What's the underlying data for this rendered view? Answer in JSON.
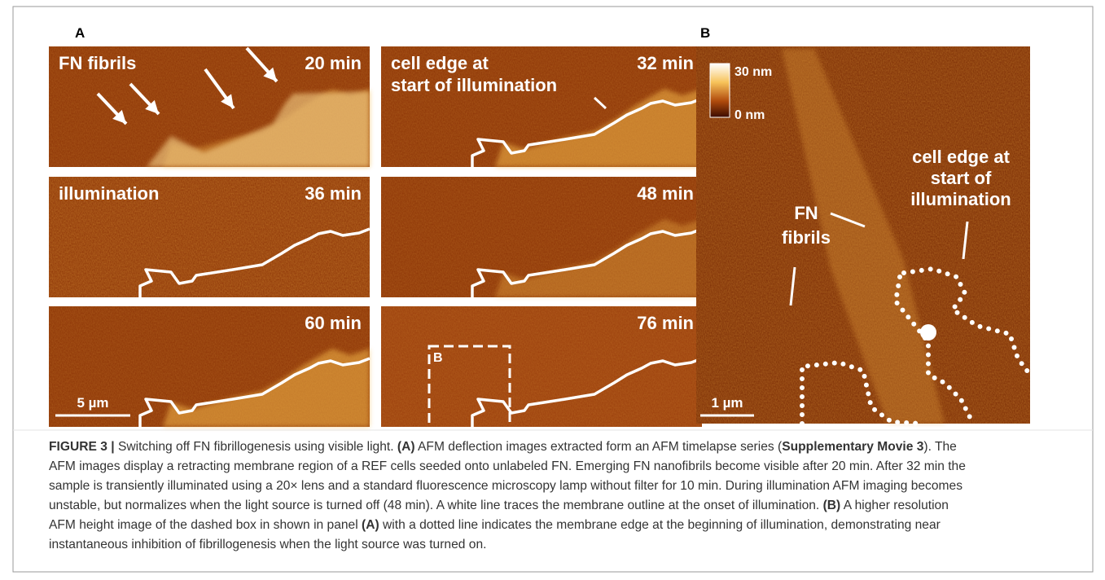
{
  "figure": {
    "panel_a": {
      "label": "A",
      "tiles": [
        {
          "label_lines": [
            "FN fibrils"
          ],
          "time": "20 min"
        },
        {
          "label_lines": [
            "cell edge at",
            "start of illumination"
          ],
          "time": "32 min"
        },
        {
          "label_lines": [
            "illumination"
          ],
          "time": "36 min"
        },
        {
          "label_lines": [],
          "time": "48 min"
        },
        {
          "label_lines": [],
          "time": "60 min",
          "scale_bar": "5 µm"
        },
        {
          "label_lines": [],
          "time": "76 min",
          "box_label": "B"
        }
      ]
    },
    "panel_b": {
      "label": "B",
      "colorbar_max": "30 nm",
      "colorbar_min": "0 nm",
      "scale_bar": "1 µm",
      "cell_edge_lines": [
        "cell edge at",
        "start of",
        "illumination"
      ],
      "fn_lines": [
        "FN",
        "fibrils"
      ]
    }
  },
  "caption": {
    "lines": [
      [
        {
          "text": "FIGURE 3 |",
          "bold": true
        },
        {
          "text": " Switching off FN fibrillogenesis using visible light. ",
          "bold": false
        },
        {
          "text": "(A)",
          "bold": true
        },
        {
          "text": " AFM deflection images extracted form an AFM timelapse series (",
          "bold": false
        },
        {
          "text": "Supplementary Movie 3",
          "bold": true
        },
        {
          "text": "). The",
          "bold": false
        }
      ],
      [
        {
          "text": "AFM images display a retracting membrane region of a REF cells seeded onto unlabeled FN. Emerging FN nanofibrils become visible after 20 min. After 32 min the",
          "bold": false
        }
      ],
      [
        {
          "text": "sample is transiently illuminated using a 20× lens and a standard fluorescence microscopy lamp without filter for 10 min. During illumination AFM imaging becomes",
          "bold": false
        }
      ],
      [
        {
          "text": "unstable, but normalizes when the light source is turned off (48 min). A white line traces the membrane outline at the onset of illumination. ",
          "bold": false
        },
        {
          "text": "(B)",
          "bold": true
        },
        {
          "text": " A higher resolution",
          "bold": false
        }
      ],
      [
        {
          "text": "AFM height image of the dashed box in shown in panel ",
          "bold": false
        },
        {
          "text": "(A)",
          "bold": true
        },
        {
          "text": " with a dotted line indicates the membrane edge at the beginning of illumination, demonstrating near",
          "bold": false
        }
      ],
      [
        {
          "text": "instantaneous inhibition of fibrillogenesis when the light source was turned on.",
          "bold": false
        }
      ]
    ]
  }
}
